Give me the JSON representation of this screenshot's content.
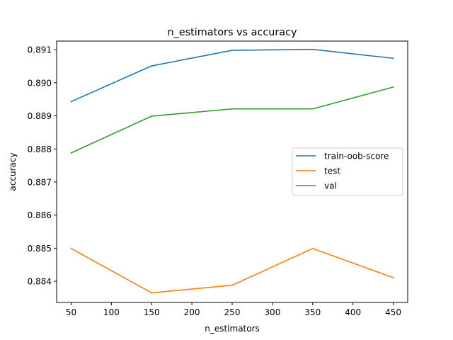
{
  "chart_data": {
    "type": "line",
    "title": "n_estimators vs accuracy",
    "xlabel": "n_estimators",
    "ylabel": "accuracy",
    "x": [
      50,
      150,
      250,
      350,
      450
    ],
    "xlim": [
      32,
      468
    ],
    "ylim": [
      0.88336,
      0.89126
    ],
    "xticks": [
      50,
      100,
      150,
      200,
      250,
      300,
      350,
      400,
      450
    ],
    "xtick_labels": [
      "50",
      "100",
      "150",
      "200",
      "250",
      "300",
      "350",
      "400",
      "450"
    ],
    "yticks": [
      0.884,
      0.885,
      0.886,
      0.887,
      0.888,
      0.889,
      0.89,
      0.891
    ],
    "ytick_labels": [
      "0.884",
      "0.885",
      "0.886",
      "0.887",
      "0.888",
      "0.889",
      "0.890",
      "0.891"
    ],
    "grid": false,
    "legend_position": "center-right",
    "series": [
      {
        "name": "train-oob-score",
        "color": "#1f77b4",
        "values": [
          0.88943,
          0.89051,
          0.89098,
          0.89101,
          0.89074
        ]
      },
      {
        "name": "test",
        "color": "#ff7f0e",
        "values": [
          0.88499,
          0.88365,
          0.88388,
          0.88499,
          0.88411
        ]
      },
      {
        "name": "val",
        "color": "#2ca02c",
        "values": [
          0.88788,
          0.88899,
          0.88921,
          0.88921,
          0.88987
        ]
      }
    ]
  }
}
